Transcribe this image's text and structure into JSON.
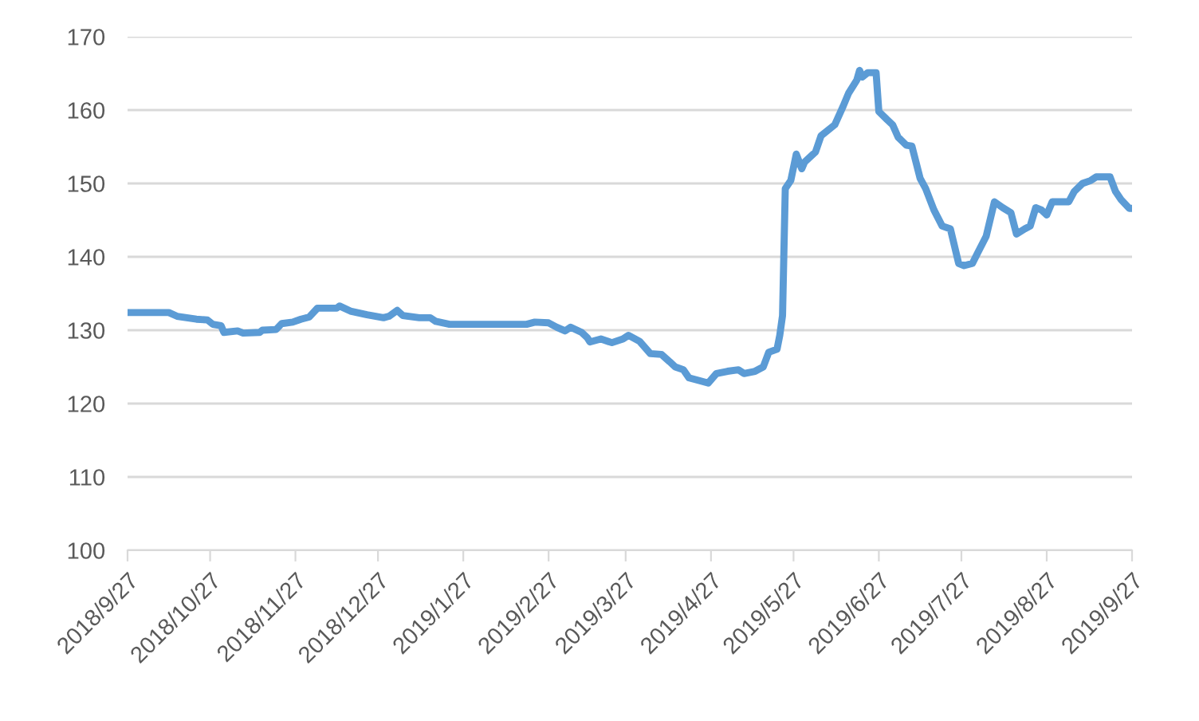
{
  "chart_data": {
    "type": "line",
    "x": [
      "2018-09-27",
      "2018-10-12",
      "2018-10-15",
      "2018-10-22",
      "2018-10-26",
      "2018-10-28",
      "2018-10-31",
      "2018-11-01",
      "2018-11-06",
      "2018-11-08",
      "2018-11-14",
      "2018-11-15",
      "2018-11-20",
      "2018-11-22",
      "2018-11-26",
      "2018-11-29",
      "2018-12-02",
      "2018-12-05",
      "2018-12-12",
      "2018-12-13",
      "2018-12-17",
      "2018-12-23",
      "2018-12-29",
      "2018-12-31",
      "2019-01-03",
      "2019-01-05",
      "2019-01-11",
      "2019-01-15",
      "2019-01-17",
      "2019-01-22",
      "2019-02-19",
      "2019-02-22",
      "2019-02-27",
      "2019-03-02",
      "2019-03-05",
      "2019-03-07",
      "2019-03-11",
      "2019-03-13",
      "2019-03-14",
      "2019-03-18",
      "2019-03-22",
      "2019-03-26",
      "2019-03-28",
      "2019-04-01",
      "2019-04-05",
      "2019-04-09",
      "2019-04-12",
      "2019-04-14",
      "2019-04-17",
      "2019-04-19",
      "2019-04-22",
      "2019-04-26",
      "2019-04-29",
      "2019-05-03",
      "2019-05-07",
      "2019-05-09",
      "2019-05-13",
      "2019-05-16",
      "2019-05-18",
      "2019-05-21",
      "2019-05-22",
      "2019-05-23",
      "2019-05-24",
      "2019-05-26",
      "2019-05-28",
      "2019-05-30",
      "2019-05-31",
      "2019-06-04",
      "2019-06-06",
      "2019-06-11",
      "2019-06-14",
      "2019-06-16",
      "2019-06-19",
      "2019-06-20",
      "2019-06-21",
      "2019-06-23",
      "2019-06-26",
      "2019-06-27",
      "2019-06-30",
      "2019-07-02",
      "2019-07-04",
      "2019-07-07",
      "2019-07-09",
      "2019-07-12",
      "2019-07-14",
      "2019-07-17",
      "2019-07-20",
      "2019-07-23",
      "2019-07-26",
      "2019-07-28",
      "2019-07-31",
      "2019-08-02",
      "2019-08-05",
      "2019-08-08",
      "2019-08-11",
      "2019-08-14",
      "2019-08-16",
      "2019-08-19",
      "2019-08-21",
      "2019-08-23",
      "2019-08-25",
      "2019-08-27",
      "2019-08-29",
      "2019-09-04",
      "2019-09-06",
      "2019-09-09",
      "2019-09-12",
      "2019-09-14",
      "2019-09-19",
      "2019-09-21",
      "2019-09-23",
      "2019-09-26",
      "2019-09-27"
    ],
    "series": [
      {
        "color": "#5b9bd5",
        "values": [
          132.4,
          132.4,
          131.9,
          131.5,
          131.4,
          130.8,
          130.6,
          129.7,
          129.9,
          129.6,
          129.7,
          130.0,
          130.1,
          130.9,
          131.1,
          131.5,
          131.8,
          133.0,
          133.0,
          133.3,
          132.6,
          132.1,
          131.7,
          131.9,
          132.7,
          132.0,
          131.7,
          131.7,
          131.2,
          130.8,
          130.8,
          131.1,
          131.0,
          130.4,
          129.9,
          130.4,
          129.7,
          129.0,
          128.4,
          128.8,
          128.3,
          128.8,
          129.3,
          128.5,
          126.8,
          126.7,
          125.7,
          125.0,
          124.6,
          123.5,
          123.2,
          122.8,
          124.1,
          124.4,
          124.6,
          124.1,
          124.4,
          125.0,
          127.0,
          127.4,
          129.3,
          132.0,
          149.3,
          150.4,
          154.0,
          152.0,
          152.9,
          154.3,
          156.5,
          158.0,
          160.5,
          162.3,
          164.1,
          165.4,
          164.5,
          165.1,
          165.1,
          159.8,
          158.7,
          158.0,
          156.3,
          155.2,
          155.1,
          150.7,
          149.3,
          146.4,
          144.2,
          143.8,
          139.1,
          138.8,
          139.1,
          140.6,
          142.8,
          147.5,
          146.7,
          146.0,
          143.1,
          143.8,
          144.2,
          146.7,
          146.4,
          145.7,
          147.5,
          147.5,
          148.9,
          150.0,
          150.4,
          150.9,
          150.9,
          148.9,
          147.8,
          146.6,
          146.6
        ]
      }
    ],
    "xlim": [
      "2018-09-27",
      "2019-09-27"
    ],
    "xticks": [
      {
        "value": "2018-09-27",
        "label": "2018/9/27"
      },
      {
        "value": "2018-10-27",
        "label": "2018/10/27"
      },
      {
        "value": "2018-11-27",
        "label": "2018/11/27"
      },
      {
        "value": "2018-12-27",
        "label": "2018/12/27"
      },
      {
        "value": "2019-01-27",
        "label": "2019/1/27"
      },
      {
        "value": "2019-02-27",
        "label": "2019/2/27"
      },
      {
        "value": "2019-03-27",
        "label": "2019/3/27"
      },
      {
        "value": "2019-04-27",
        "label": "2019/4/27"
      },
      {
        "value": "2019-05-27",
        "label": "2019/5/27"
      },
      {
        "value": "2019-06-27",
        "label": "2019/6/27"
      },
      {
        "value": "2019-07-27",
        "label": "2019/7/27"
      },
      {
        "value": "2019-08-27",
        "label": "2019/8/27"
      },
      {
        "value": "2019-09-27",
        "label": "2019/9/27"
      }
    ],
    "ylim": [
      100,
      170
    ],
    "yticks": [
      100,
      110,
      120,
      130,
      140,
      150,
      160,
      170
    ],
    "grid": "y"
  }
}
